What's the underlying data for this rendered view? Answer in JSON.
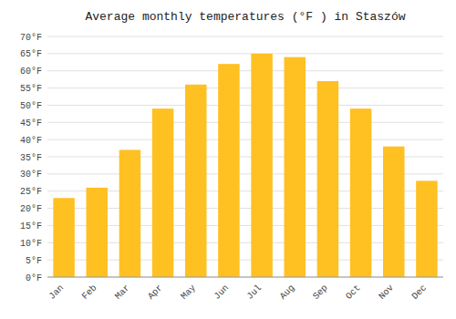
{
  "chart_data": {
    "type": "bar",
    "title": "Average monthly temperatures (°F ) in Staszów",
    "categories": [
      "Jan",
      "Feb",
      "Mar",
      "Apr",
      "May",
      "Jun",
      "Jul",
      "Aug",
      "Sep",
      "Oct",
      "Nov",
      "Dec"
    ],
    "values": [
      23,
      26,
      37,
      49,
      56,
      62,
      65,
      64,
      57,
      49,
      38,
      28
    ],
    "color": "#FFC022",
    "ylim": [
      0,
      70
    ],
    "yticks": [
      {
        "value": 0,
        "label": "0°F"
      },
      {
        "value": 5,
        "label": "5°F"
      },
      {
        "value": 10,
        "label": "10°F"
      },
      {
        "value": 15,
        "label": "15°F"
      },
      {
        "value": 20,
        "label": "20°F"
      },
      {
        "value": 25,
        "label": "25°F"
      },
      {
        "value": 30,
        "label": "30°F"
      },
      {
        "value": 35,
        "label": "35°F"
      },
      {
        "value": 40,
        "label": "40°F"
      },
      {
        "value": 45,
        "label": "45°F"
      },
      {
        "value": 50,
        "label": "50°F"
      },
      {
        "value": 55,
        "label": "55°F"
      },
      {
        "value": 60,
        "label": "60°F"
      },
      {
        "value": 65,
        "label": "65°F"
      },
      {
        "value": 70,
        "label": "70°F"
      }
    ],
    "grid": true
  }
}
